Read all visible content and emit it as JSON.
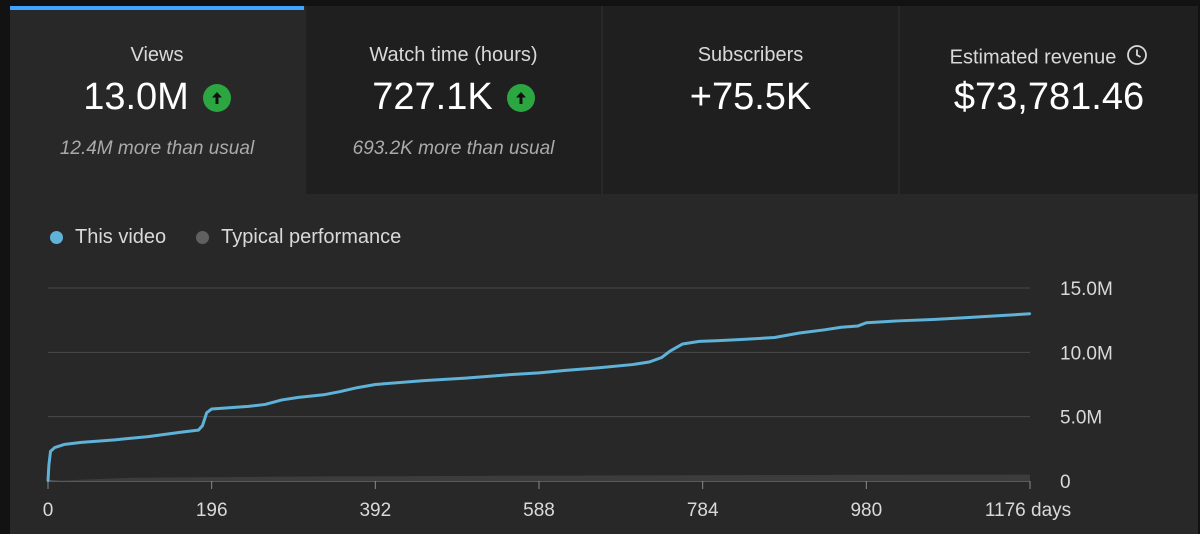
{
  "cards": [
    {
      "label": "Views",
      "value": "13.0M",
      "trend": "up",
      "sub": "12.4M more than usual"
    },
    {
      "label": "Watch time (hours)",
      "value": "727.1K",
      "trend": "up",
      "sub": "693.2K more than usual"
    },
    {
      "label": "Subscribers",
      "value": "+75.5K",
      "trend": "",
      "sub": ""
    },
    {
      "label": "Estimated revenue",
      "value": "$73,781.46",
      "trend": "",
      "sub": "",
      "icon": "clock-icon"
    }
  ],
  "legend": [
    {
      "label": "This video",
      "color": "#5fb2d8"
    },
    {
      "label": "Typical performance",
      "color": "#606060"
    }
  ],
  "colors": {
    "accent": "#3ea6ff",
    "up": "#2ba640",
    "series": "#5fb2d8",
    "typical": "#3c3c3c"
  },
  "chart_data": {
    "type": "line",
    "x_ticks": [
      "0",
      "196",
      "392",
      "588",
      "784",
      "980",
      "1176 days"
    ],
    "y_ticks": [
      "0",
      "5.0M",
      "10.0M",
      "15.0M"
    ],
    "xlim": [
      0,
      1176
    ],
    "ylim": [
      0,
      15000000
    ],
    "grid": true,
    "legend_position": "top-left",
    "series": [
      {
        "name": "This video",
        "x": [
          0,
          1,
          3,
          8,
          20,
          40,
          80,
          120,
          160,
          180,
          185,
          190,
          196,
          240,
          260,
          280,
          300,
          330,
          350,
          370,
          392,
          450,
          500,
          550,
          588,
          620,
          660,
          700,
          720,
          735,
          745,
          760,
          780,
          800,
          830,
          870,
          900,
          930,
          950,
          970,
          980,
          1020,
          1060,
          1100,
          1140,
          1176
        ],
        "y": [
          0,
          1200000,
          2300000,
          2600000,
          2850000,
          3000000,
          3200000,
          3450000,
          3800000,
          3950000,
          4300000,
          5300000,
          5600000,
          5800000,
          5950000,
          6300000,
          6500000,
          6700000,
          6950000,
          7250000,
          7500000,
          7800000,
          8000000,
          8250000,
          8400000,
          8600000,
          8800000,
          9050000,
          9250000,
          9600000,
          10100000,
          10650000,
          10850000,
          10900000,
          11000000,
          11150000,
          11500000,
          11750000,
          11950000,
          12050000,
          12300000,
          12450000,
          12550000,
          12700000,
          12850000,
          13000000
        ]
      },
      {
        "name": "Typical performance",
        "x": [
          0,
          100,
          300,
          600,
          900,
          1176
        ],
        "y": [
          0,
          250000,
          350000,
          420000,
          470000,
          500000
        ]
      }
    ]
  }
}
